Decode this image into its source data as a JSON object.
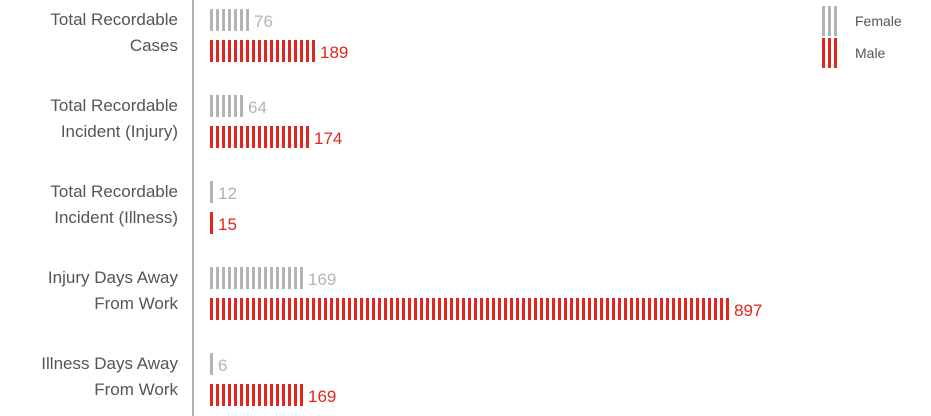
{
  "chart_data": {
    "type": "bar",
    "orientation": "horizontal",
    "categories": [
      [
        "Total Recordable",
        "Cases"
      ],
      [
        "Total Recordable",
        "Incident (Injury)"
      ],
      [
        "Total Recordable",
        "Incident (Illness)"
      ],
      [
        "Injury Days Away",
        "From Work"
      ],
      [
        "Illness Days Away",
        "From Work"
      ]
    ],
    "series": [
      {
        "name": "Female",
        "color": "#b3b3b3",
        "values": [
          76,
          64,
          12,
          169,
          6
        ]
      },
      {
        "name": "Male",
        "color": "#e2261f",
        "values": [
          189,
          174,
          15,
          897,
          169
        ]
      }
    ],
    "legend_position": "top-right",
    "grid": false,
    "axis_color": "#999999"
  }
}
